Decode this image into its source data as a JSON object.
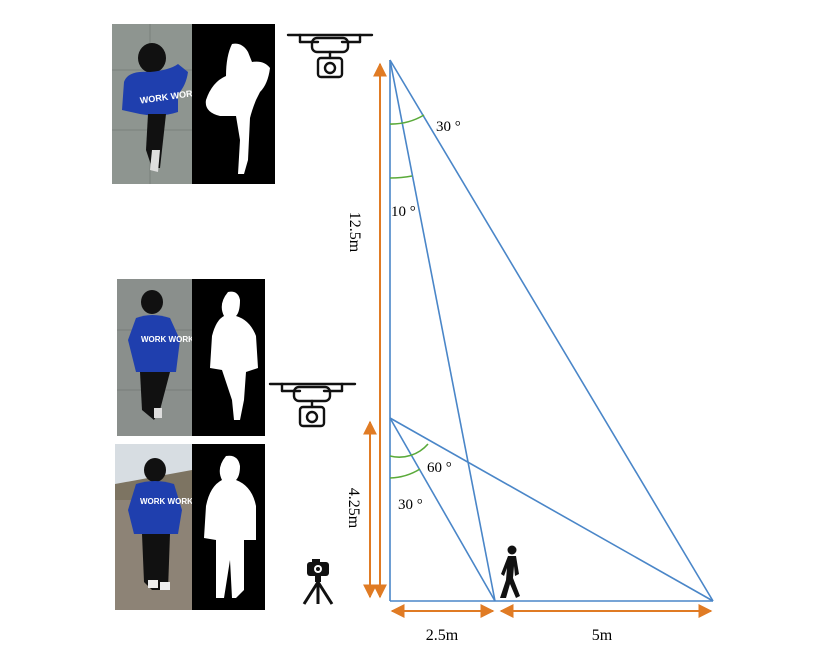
{
  "figure": {
    "heights": {
      "high_drone": "12.5m",
      "low_drone": "4.25m"
    },
    "distances": {
      "near": "2.5m",
      "far": "5m"
    },
    "angles": {
      "high_outer": "30 °",
      "high_inner": "10 °",
      "low_outer": "60 °",
      "low_inner": "30 °"
    },
    "panels": [
      {
        "view": "high drone view",
        "hoodie_text": "WORK WORK"
      },
      {
        "view": "low drone view",
        "hoodie_text": "WORK WORK"
      },
      {
        "view": "ground camera view",
        "hoodie_text": "WORK WORK"
      }
    ],
    "icons": [
      "drone-icon",
      "drone-icon",
      "tripod-camera-icon",
      "walking-person-icon"
    ],
    "colors": {
      "sight_lines": "#4a86c8",
      "dimension_arrows": "#e07b24",
      "angle_arcs": "#5aaa3a",
      "hoodie": "#1f3fae",
      "mask_background": "#000000",
      "mask_foreground": "#ffffff"
    }
  }
}
